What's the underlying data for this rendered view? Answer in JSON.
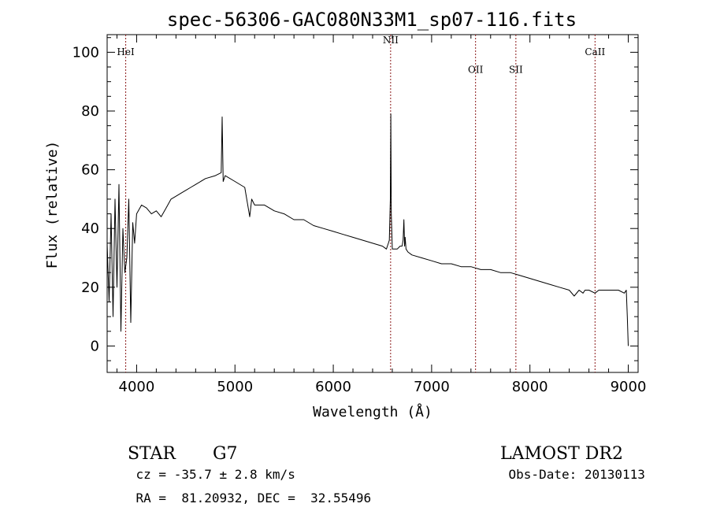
{
  "chart_data": {
    "type": "line",
    "title": "spec-56306-GAC080N33M1_sp07-116.fits",
    "xlabel": "Wavelength (Å)",
    "ylabel": "Flux (relative)",
    "xlim": [
      3700,
      9100
    ],
    "ylim": [
      -9,
      106
    ],
    "xticks": [
      4000,
      5000,
      6000,
      7000,
      8000,
      9000
    ],
    "xtick_labels": [
      "4000",
      "5000",
      "6000",
      "7000",
      "8000",
      "9000"
    ],
    "yticks": [
      0,
      20,
      40,
      60,
      80,
      100
    ],
    "ytick_labels": [
      "0",
      "20",
      "40",
      "60",
      "80",
      "100"
    ],
    "line_color": "#000000",
    "marker_color": "#8b1a1a",
    "lines": [
      {
        "name": "HeI",
        "x": 3889,
        "label_y": 99
      },
      {
        "name": "NII",
        "x": 6583,
        "label_y": 103
      },
      {
        "name": "OII",
        "x": 7447,
        "label_y": 93
      },
      {
        "name": "SII",
        "x": 7857,
        "label_y": 93
      },
      {
        "name": "CaII",
        "x": 8662,
        "label_y": 99
      }
    ],
    "series": [
      {
        "name": "spectrum",
        "x": [
          3700,
          3720,
          3740,
          3760,
          3780,
          3800,
          3820,
          3840,
          3860,
          3880,
          3900,
          3920,
          3940,
          3960,
          3980,
          4000,
          4050,
          4100,
          4150,
          4200,
          4250,
          4300,
          4350,
          4400,
          4450,
          4500,
          4550,
          4600,
          4700,
          4800,
          4860,
          4870,
          4880,
          4900,
          5000,
          5100,
          5150,
          5170,
          5200,
          5300,
          5400,
          5500,
          5600,
          5700,
          5800,
          5900,
          6000,
          6100,
          6200,
          6300,
          6400,
          6500,
          6540,
          6560,
          6570,
          6580,
          6585,
          6590,
          6600,
          6620,
          6650,
          6680,
          6700,
          6710,
          6718,
          6725,
          6731,
          6740,
          6760,
          6800,
          6900,
          7000,
          7100,
          7200,
          7300,
          7400,
          7500,
          7600,
          7700,
          7800,
          7900,
          8000,
          8100,
          8200,
          8300,
          8400,
          8450,
          8500,
          8540,
          8560,
          8600,
          8662,
          8700,
          8800,
          8900,
          8960,
          8980,
          8990,
          9000
        ],
        "y": [
          35,
          15,
          45,
          10,
          50,
          20,
          55,
          5,
          40,
          25,
          30,
          50,
          8,
          42,
          35,
          45,
          48,
          47,
          45,
          46,
          44,
          47,
          50,
          51,
          52,
          53,
          54,
          55,
          57,
          58,
          59,
          78,
          56,
          58,
          56,
          54,
          44,
          50,
          48,
          48,
          46,
          45,
          43,
          43,
          41,
          40,
          39,
          38,
          37,
          36,
          35,
          34,
          33,
          35,
          36,
          50,
          79,
          45,
          33,
          33,
          33,
          34,
          34,
          36,
          43,
          34,
          37,
          33,
          32,
          31,
          30,
          29,
          28,
          28,
          27,
          27,
          26,
          26,
          25,
          25,
          24,
          23,
          22,
          21,
          20,
          19,
          17,
          19,
          18,
          19,
          19,
          18,
          19,
          19,
          19,
          18,
          19,
          10,
          0
        ]
      }
    ]
  },
  "info": {
    "class_label": "STAR",
    "subclass": "G7",
    "cz_text": "cz = -35.7 ± 2.8 km/s",
    "radec_text": "RA =  81.20932, DEC =  32.55496",
    "survey": "LAMOST DR2",
    "obs_date": "Obs-Date: 20130113"
  }
}
